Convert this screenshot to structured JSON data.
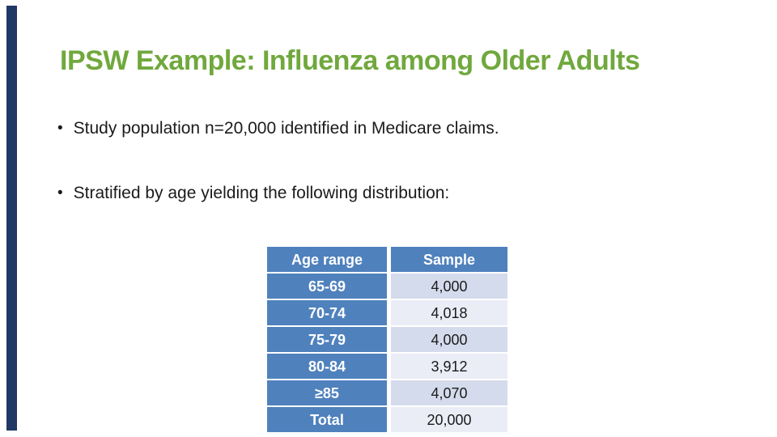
{
  "slide": {
    "title": "IPSW Example: Influenza among Older Adults",
    "bullet_char": "•",
    "bullets": [
      "Study population n=20,000 identified in Medicare claims.",
      "Stratified by age yielding the following distribution:"
    ],
    "table": {
      "columns": [
        "Age range",
        "Sample"
      ],
      "rows": [
        {
          "age_range": "65-69",
          "sample": "4,000"
        },
        {
          "age_range": "70-74",
          "sample": "4,018"
        },
        {
          "age_range": "75-79",
          "sample": "4,000"
        },
        {
          "age_range": "80-84",
          "sample": "3,912"
        },
        {
          "age_range": "≥85",
          "sample": "4,070"
        },
        {
          "age_range": "Total",
          "sample": "20,000"
        }
      ]
    },
    "colors": {
      "title_color": "#70A83D",
      "accent_bar": "#1F3864",
      "table_header_bg": "#4F81BD",
      "table_header_text": "#FFFFFF",
      "band_dark": "#D4DBEC",
      "band_light": "#EAEDF6",
      "body_text": "#1B1B1B"
    }
  }
}
